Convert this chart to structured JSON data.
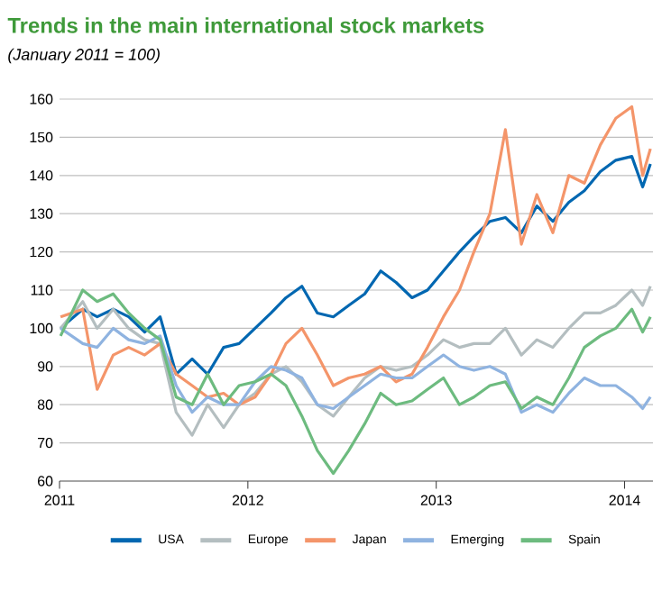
{
  "chart_data": {
    "type": "line",
    "title": "Trends in the main international stock markets",
    "subtitle": "(January  2011 = 100)",
    "x": [
      "2011-01-03",
      "2011-02-15",
      "2011-03-15",
      "2011-04-15",
      "2011-05-15",
      "2011-06-15",
      "2011-07-15",
      "2011-08-15",
      "2011-09-15",
      "2011-10-15",
      "2011-11-15",
      "2011-12-15",
      "2012-01-15",
      "2012-02-15",
      "2012-03-15",
      "2012-04-15",
      "2012-05-15",
      "2012-06-15",
      "2012-07-15",
      "2012-08-15",
      "2012-09-15",
      "2012-10-15",
      "2012-11-15",
      "2012-12-15",
      "2013-01-15",
      "2013-02-15",
      "2013-03-15",
      "2013-04-15",
      "2013-05-15",
      "2013-06-15",
      "2013-07-15",
      "2013-08-15",
      "2013-09-15",
      "2013-10-15",
      "2013-11-15",
      "2013-12-15",
      "2014-01-15",
      "2014-02-05",
      "2014-02-20"
    ],
    "series": [
      {
        "name": "USA",
        "color": "#0067b1",
        "values": [
          100,
          105,
          103,
          105,
          103,
          99,
          103,
          88,
          92,
          88,
          95,
          96,
          100,
          104,
          108,
          111,
          104,
          103,
          106,
          109,
          115,
          112,
          108,
          110,
          115,
          120,
          124,
          128,
          129,
          125,
          132,
          128,
          133,
          136,
          141,
          144,
          145,
          137,
          143
        ]
      },
      {
        "name": "Europe",
        "color": "#b4bec0",
        "values": [
          100,
          107,
          100,
          105,
          100,
          97,
          96,
          78,
          72,
          80,
          74,
          80,
          83,
          88,
          90,
          86,
          80,
          77,
          82,
          87,
          90,
          89,
          90,
          93,
          97,
          95,
          96,
          96,
          100,
          93,
          97,
          95,
          100,
          104,
          104,
          106,
          110,
          106,
          111
        ]
      },
      {
        "name": "Japan",
        "color": "#f4956a",
        "values": [
          103,
          105,
          84,
          93,
          95,
          93,
          96,
          88,
          85,
          82,
          83,
          80,
          82,
          88,
          96,
          100,
          93,
          85,
          87,
          88,
          90,
          86,
          88,
          95,
          103,
          110,
          120,
          130,
          152,
          122,
          135,
          125,
          140,
          138,
          148,
          155,
          158,
          140,
          147
        ]
      },
      {
        "name": "Emerging",
        "color": "#8fb3e0",
        "values": [
          100,
          96,
          95,
          100,
          97,
          96,
          98,
          85,
          78,
          82,
          80,
          80,
          86,
          90,
          89,
          87,
          80,
          79,
          82,
          85,
          88,
          87,
          87,
          90,
          93,
          90,
          89,
          90,
          88,
          78,
          80,
          78,
          83,
          87,
          85,
          85,
          82,
          79,
          82
        ]
      },
      {
        "name": "Spain",
        "color": "#6dbb7f",
        "values": [
          98,
          110,
          107,
          109,
          104,
          100,
          97,
          82,
          80,
          88,
          80,
          85,
          86,
          88,
          85,
          77,
          68,
          62,
          68,
          75,
          83,
          80,
          81,
          84,
          87,
          80,
          82,
          85,
          86,
          79,
          82,
          80,
          87,
          95,
          98,
          100,
          105,
          99,
          103
        ]
      }
    ],
    "xlim": [
      "2011-01-01",
      "2014-02-25"
    ],
    "ylim": [
      60,
      160
    ],
    "xticks": [
      "2011",
      "2012",
      "2013",
      "2014"
    ],
    "yticks": [
      60,
      70,
      80,
      90,
      100,
      110,
      120,
      130,
      140,
      150,
      160
    ],
    "grid": "y",
    "legend": "bottom",
    "marker": "none",
    "line_style": "solid"
  }
}
